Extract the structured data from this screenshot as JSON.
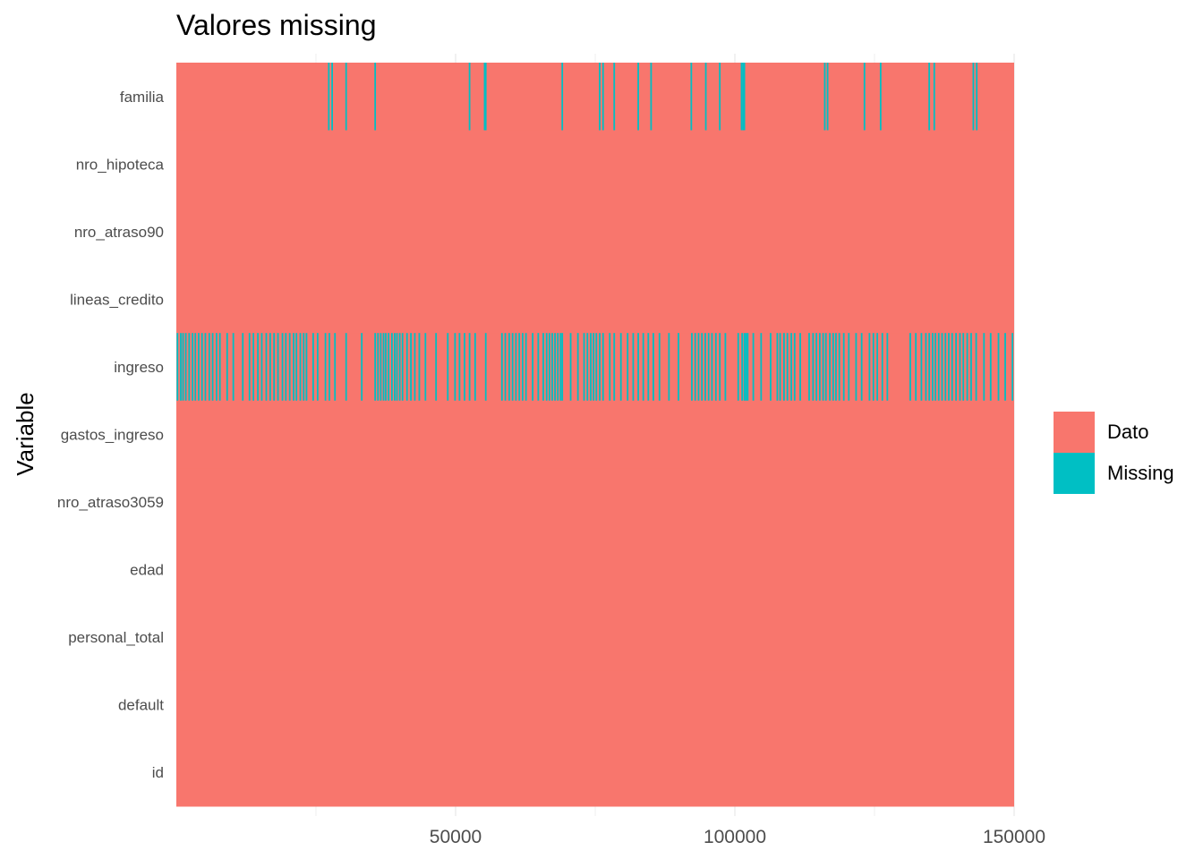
{
  "chart_data": {
    "type": "heatmap",
    "title": "Valores missing",
    "ylabel": "Variable",
    "xlabel": "",
    "xlim": [
      0,
      150000
    ],
    "xticks": [
      50000,
      100000,
      150000
    ],
    "grid": true,
    "legend_position": "right",
    "categories_top_to_bottom": [
      "familia",
      "nro_hipoteca",
      "nro_atraso90",
      "lineas_credito",
      "ingreso",
      "gastos_ingreso",
      "nro_atraso3059",
      "edad",
      "personal_total",
      "default",
      "id"
    ],
    "legend": [
      {
        "label": "Dato",
        "color": "#F8766D"
      },
      {
        "label": "Missing",
        "color": "#00BFC4"
      }
    ],
    "missing": {
      "familia": [
        27300,
        27900,
        30400,
        35600,
        52500,
        55200,
        55400,
        69100,
        75800,
        76400,
        78400,
        82700,
        85000,
        92200,
        94800,
        97300,
        101200,
        101500,
        101700,
        116100,
        116600,
        123200,
        126100,
        134800,
        135700,
        142700,
        143300
      ],
      "ingreso": [
        200,
        800,
        1200,
        1700,
        2300,
        2900,
        3400,
        4000,
        4600,
        5200,
        5900,
        6500,
        7200,
        7800,
        9100,
        10200,
        11900,
        13100,
        13800,
        14600,
        15300,
        16100,
        16800,
        17500,
        18200,
        19000,
        19600,
        20300,
        21000,
        21500,
        22200,
        22800,
        23300,
        24500,
        25300,
        26700,
        27400,
        28400,
        30400,
        33200,
        35600,
        36100,
        36600,
        37100,
        37500,
        38000,
        38600,
        39100,
        39500,
        40000,
        40500,
        41300,
        42000,
        42700,
        43500,
        44600,
        46500,
        48600,
        49900,
        50700,
        51600,
        52500,
        53500,
        55400,
        58300,
        58900,
        59600,
        60200,
        60800,
        61400,
        62000,
        62600,
        63800,
        64800,
        65700,
        66300,
        66800,
        67300,
        67800,
        68300,
        68800,
        69100,
        70600,
        71900,
        73000,
        73600,
        74200,
        74700,
        75200,
        75800,
        76400,
        77600,
        78400,
        79600,
        80800,
        81800,
        82700,
        83600,
        84500,
        85400,
        86500,
        88200,
        89900,
        92300,
        92900,
        93500,
        94100,
        94700,
        95300,
        95900,
        96600,
        97300,
        98300,
        100600,
        101300,
        101700,
        102000,
        102300,
        103300,
        104700,
        106400,
        107600,
        108100,
        108800,
        109400,
        110100,
        110700,
        111700,
        113300,
        114000,
        114600,
        115200,
        115800,
        116300,
        117000,
        117600,
        118100,
        118700,
        119500,
        120400,
        121700,
        122700,
        124100,
        124800,
        125500,
        126400,
        127300,
        131400,
        132400,
        133400,
        134200,
        134800,
        135400,
        135900,
        136500,
        137100,
        137700,
        138300,
        138900,
        139600,
        140300,
        140900,
        141600,
        142300,
        143200,
        144600,
        145800,
        147200,
        148400,
        149700
      ]
    }
  }
}
